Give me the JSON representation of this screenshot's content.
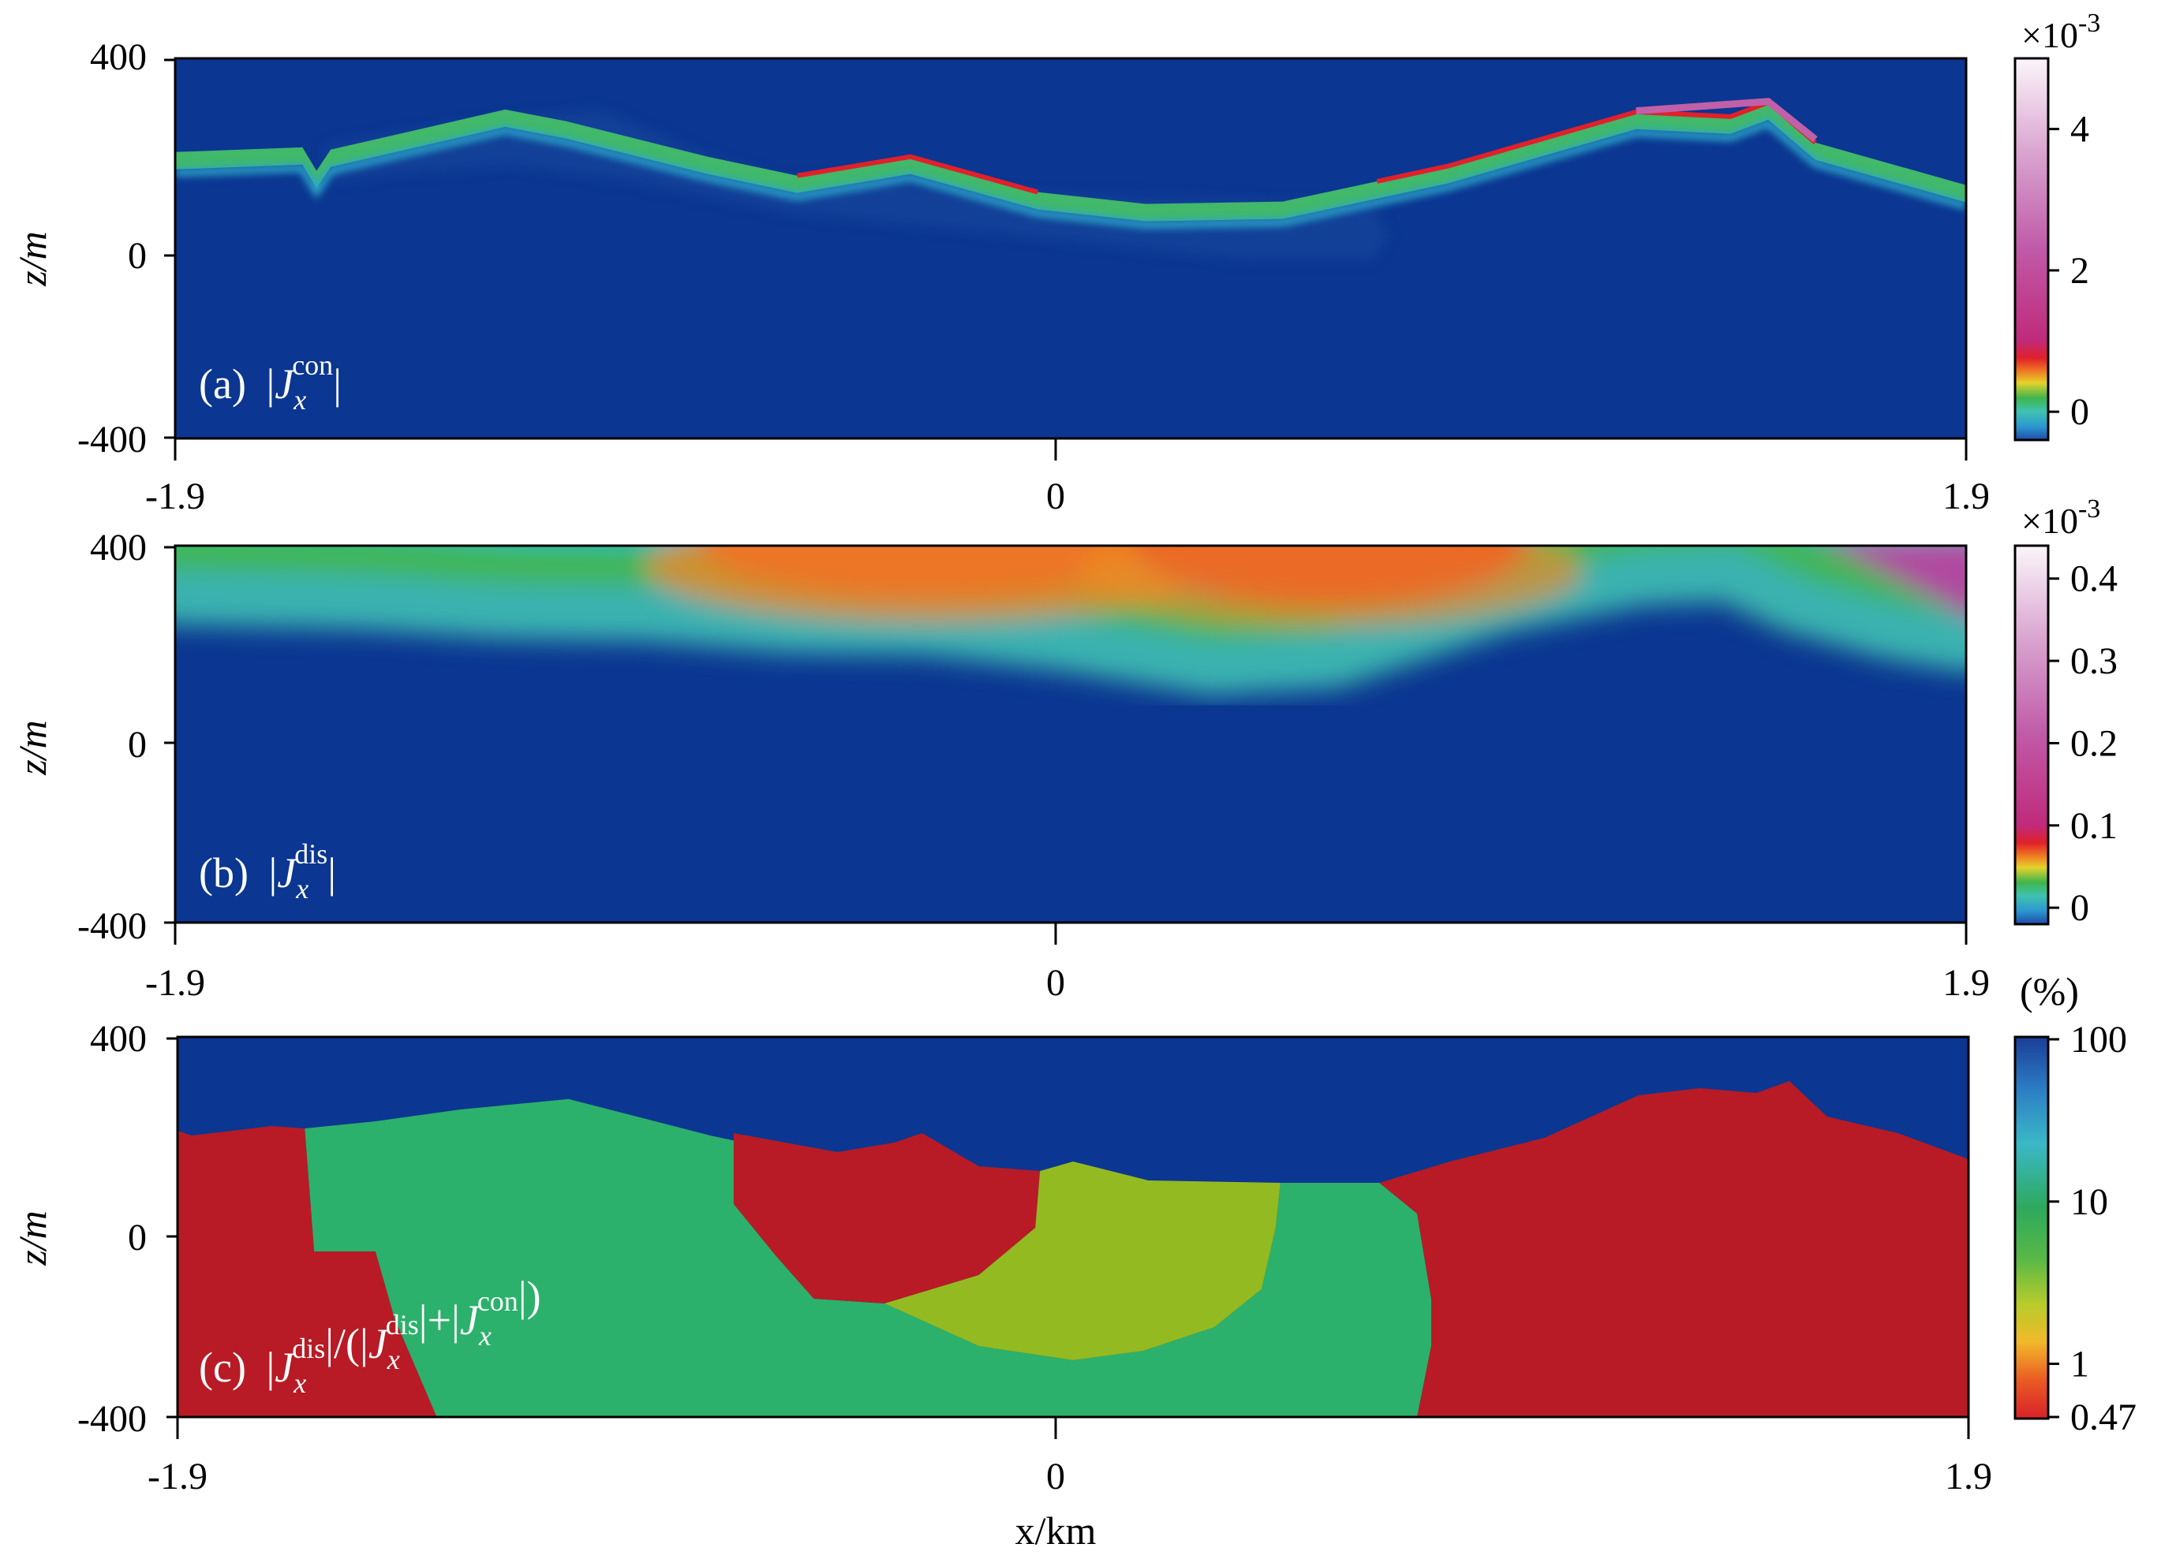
{
  "chart_data": [
    {
      "type": "heatmap",
      "panel_label": "(a)",
      "quantity": {
        "prefix": "|",
        "symbol": "J",
        "subscript": "x",
        "superscript": "con",
        "suffix": "|"
      },
      "xlabel": "",
      "ylabel": "z/m",
      "xlim": [
        -1.9,
        1.9
      ],
      "ylim": [
        -400,
        400
      ],
      "x_ticks": [
        "-1.9",
        "0",
        "1.9"
      ],
      "y_ticks": [
        "400",
        "0",
        "-400"
      ],
      "colorbar": {
        "multiplier": "×10",
        "exponent": "-3",
        "ticks": [
          "4",
          "2",
          "0"
        ],
        "tick_values": [
          4,
          2,
          0
        ],
        "range": [
          -0.4,
          5.0
        ],
        "scale": "linear"
      },
      "background_color": "#0b3691",
      "surface_profile": [
        {
          "x": -1.9,
          "z": 205
        },
        {
          "x": -1.63,
          "z": 215
        },
        {
          "x": -1.6,
          "z": 165
        },
        {
          "x": -1.57,
          "z": 210
        },
        {
          "x": -1.2,
          "z": 295
        },
        {
          "x": -1.07,
          "z": 270
        },
        {
          "x": -0.77,
          "z": 195
        },
        {
          "x": -0.58,
          "z": 155
        },
        {
          "x": -0.34,
          "z": 195
        },
        {
          "x": -0.07,
          "z": 120
        },
        {
          "x": 0.16,
          "z": 95
        },
        {
          "x": 0.45,
          "z": 100
        },
        {
          "x": 0.8,
          "z": 175
        },
        {
          "x": 1.2,
          "z": 290
        },
        {
          "x": 1.4,
          "z": 280
        },
        {
          "x": 1.48,
          "z": 310
        },
        {
          "x": 1.58,
          "z": 225
        },
        {
          "x": 1.9,
          "z": 135
        }
      ]
    },
    {
      "type": "heatmap",
      "panel_label": "(b)",
      "quantity": {
        "prefix": "|",
        "symbol": "J",
        "subscript": "x",
        "superscript": "dis",
        "suffix": "|"
      },
      "xlabel": "",
      "ylabel": "z/m",
      "xlim": [
        -1.9,
        1.9
      ],
      "ylim": [
        -400,
        400
      ],
      "x_ticks": [
        "-1.9",
        "0",
        "1.9"
      ],
      "y_ticks": [
        "400",
        "0",
        "-400"
      ],
      "colorbar": {
        "multiplier": "×10",
        "exponent": "-3",
        "ticks": [
          "0.4",
          "0.3",
          "0.2",
          "0.1",
          "0"
        ],
        "tick_values": [
          0.4,
          0.3,
          0.2,
          0.1,
          0
        ],
        "range": [
          -0.02,
          0.44
        ],
        "scale": "linear"
      },
      "background_color": "#0b3691"
    },
    {
      "type": "heatmap",
      "panel_label": "(c)",
      "quantity": {
        "parts": [
          {
            "t": "|"
          },
          {
            "sym": "J",
            "sub": "x",
            "sup": "dis"
          },
          {
            "t": "|/(|"
          },
          {
            "sym": "J",
            "sub": "x",
            "sup": "dis"
          },
          {
            "t": "|+|"
          },
          {
            "sym": "J",
            "sub": "x",
            "sup": "con"
          },
          {
            "t": "|)"
          }
        ]
      },
      "xlabel": "x/km",
      "ylabel": "z/m",
      "xlim": [
        -1.9,
        1.9
      ],
      "ylim": [
        -400,
        400
      ],
      "x_ticks": [
        "-1.9",
        "0",
        "1.9"
      ],
      "y_ticks": [
        "400",
        "0",
        "-400"
      ],
      "colorbar": {
        "unit": "(%)",
        "ticks": [
          "100",
          "10",
          "1",
          "0.47"
        ],
        "tick_values": [
          100,
          10,
          1,
          0.47
        ],
        "range": [
          0.47,
          100
        ],
        "scale": "log"
      },
      "regions": [
        {
          "color": "#b81b25",
          "points": [
            [
              -1.9,
              205
            ],
            [
              -1.87,
              195
            ],
            [
              -1.7,
              215
            ],
            [
              -1.63,
              210
            ],
            [
              -1.61,
              -50
            ],
            [
              -1.48,
              -50
            ],
            [
              -1.44,
              -190
            ],
            [
              -1.35,
              -400
            ],
            [
              -1.9,
              -400
            ]
          ]
        },
        {
          "color": "#2bb16b",
          "points": [
            [
              -1.63,
              210
            ],
            [
              -1.48,
              225
            ],
            [
              -1.3,
              250
            ],
            [
              -1.07,
              272
            ],
            [
              -0.77,
              195
            ],
            [
              -0.58,
              155
            ],
            [
              -0.55,
              -150
            ],
            [
              -0.4,
              -160
            ],
            [
              -0.2,
              -250
            ],
            [
              0,
              -280
            ],
            [
              0.15,
              -260
            ],
            [
              0.3,
              -210
            ],
            [
              0.4,
              -130
            ],
            [
              0.43,
              0
            ],
            [
              0.44,
              95
            ],
            [
              0.65,
              95
            ],
            [
              0.73,
              30
            ],
            [
              0.76,
              -150
            ],
            [
              0.76,
              -250
            ],
            [
              0.73,
              -400
            ],
            [
              -1.35,
              -400
            ],
            [
              -1.44,
              -190
            ],
            [
              -1.48,
              -50
            ],
            [
              -1.61,
              -50
            ]
          ]
        },
        {
          "color": "#b81b25",
          "points": [
            [
              -0.72,
              200
            ],
            [
              -0.5,
              160
            ],
            [
              -0.38,
              180
            ],
            [
              -0.32,
              200
            ],
            [
              -0.2,
              130
            ],
            [
              -0.07,
              120
            ],
            [
              -0.08,
              0
            ],
            [
              -0.2,
              -100
            ],
            [
              -0.4,
              -160
            ],
            [
              -0.55,
              -150
            ],
            [
              -0.63,
              -60
            ],
            [
              -0.72,
              50
            ]
          ]
        },
        {
          "color": "#93ba20",
          "points": [
            [
              -0.07,
              120
            ],
            [
              0,
              140
            ],
            [
              0.16,
              100
            ],
            [
              0.44,
              95
            ],
            [
              0.43,
              0
            ],
            [
              0.4,
              -130
            ],
            [
              0.3,
              -210
            ],
            [
              0.15,
              -260
            ],
            [
              0,
              -280
            ],
            [
              -0.2,
              -250
            ],
            [
              -0.4,
              -160
            ],
            [
              -0.2,
              -100
            ],
            [
              -0.08,
              0
            ]
          ]
        },
        {
          "color": "#b81b25",
          "points": [
            [
              0.65,
              95
            ],
            [
              0.8,
              140
            ],
            [
              1.0,
              190
            ],
            [
              1.2,
              280
            ],
            [
              1.33,
              295
            ],
            [
              1.45,
              285
            ],
            [
              1.52,
              310
            ],
            [
              1.6,
              235
            ],
            [
              1.75,
              200
            ],
            [
              1.9,
              145
            ],
            [
              1.9,
              -400
            ],
            [
              0.73,
              -400
            ],
            [
              0.76,
              -250
            ],
            [
              0.76,
              -150
            ],
            [
              0.73,
              30
            ]
          ]
        }
      ],
      "background_color": "#0b3691"
    }
  ]
}
